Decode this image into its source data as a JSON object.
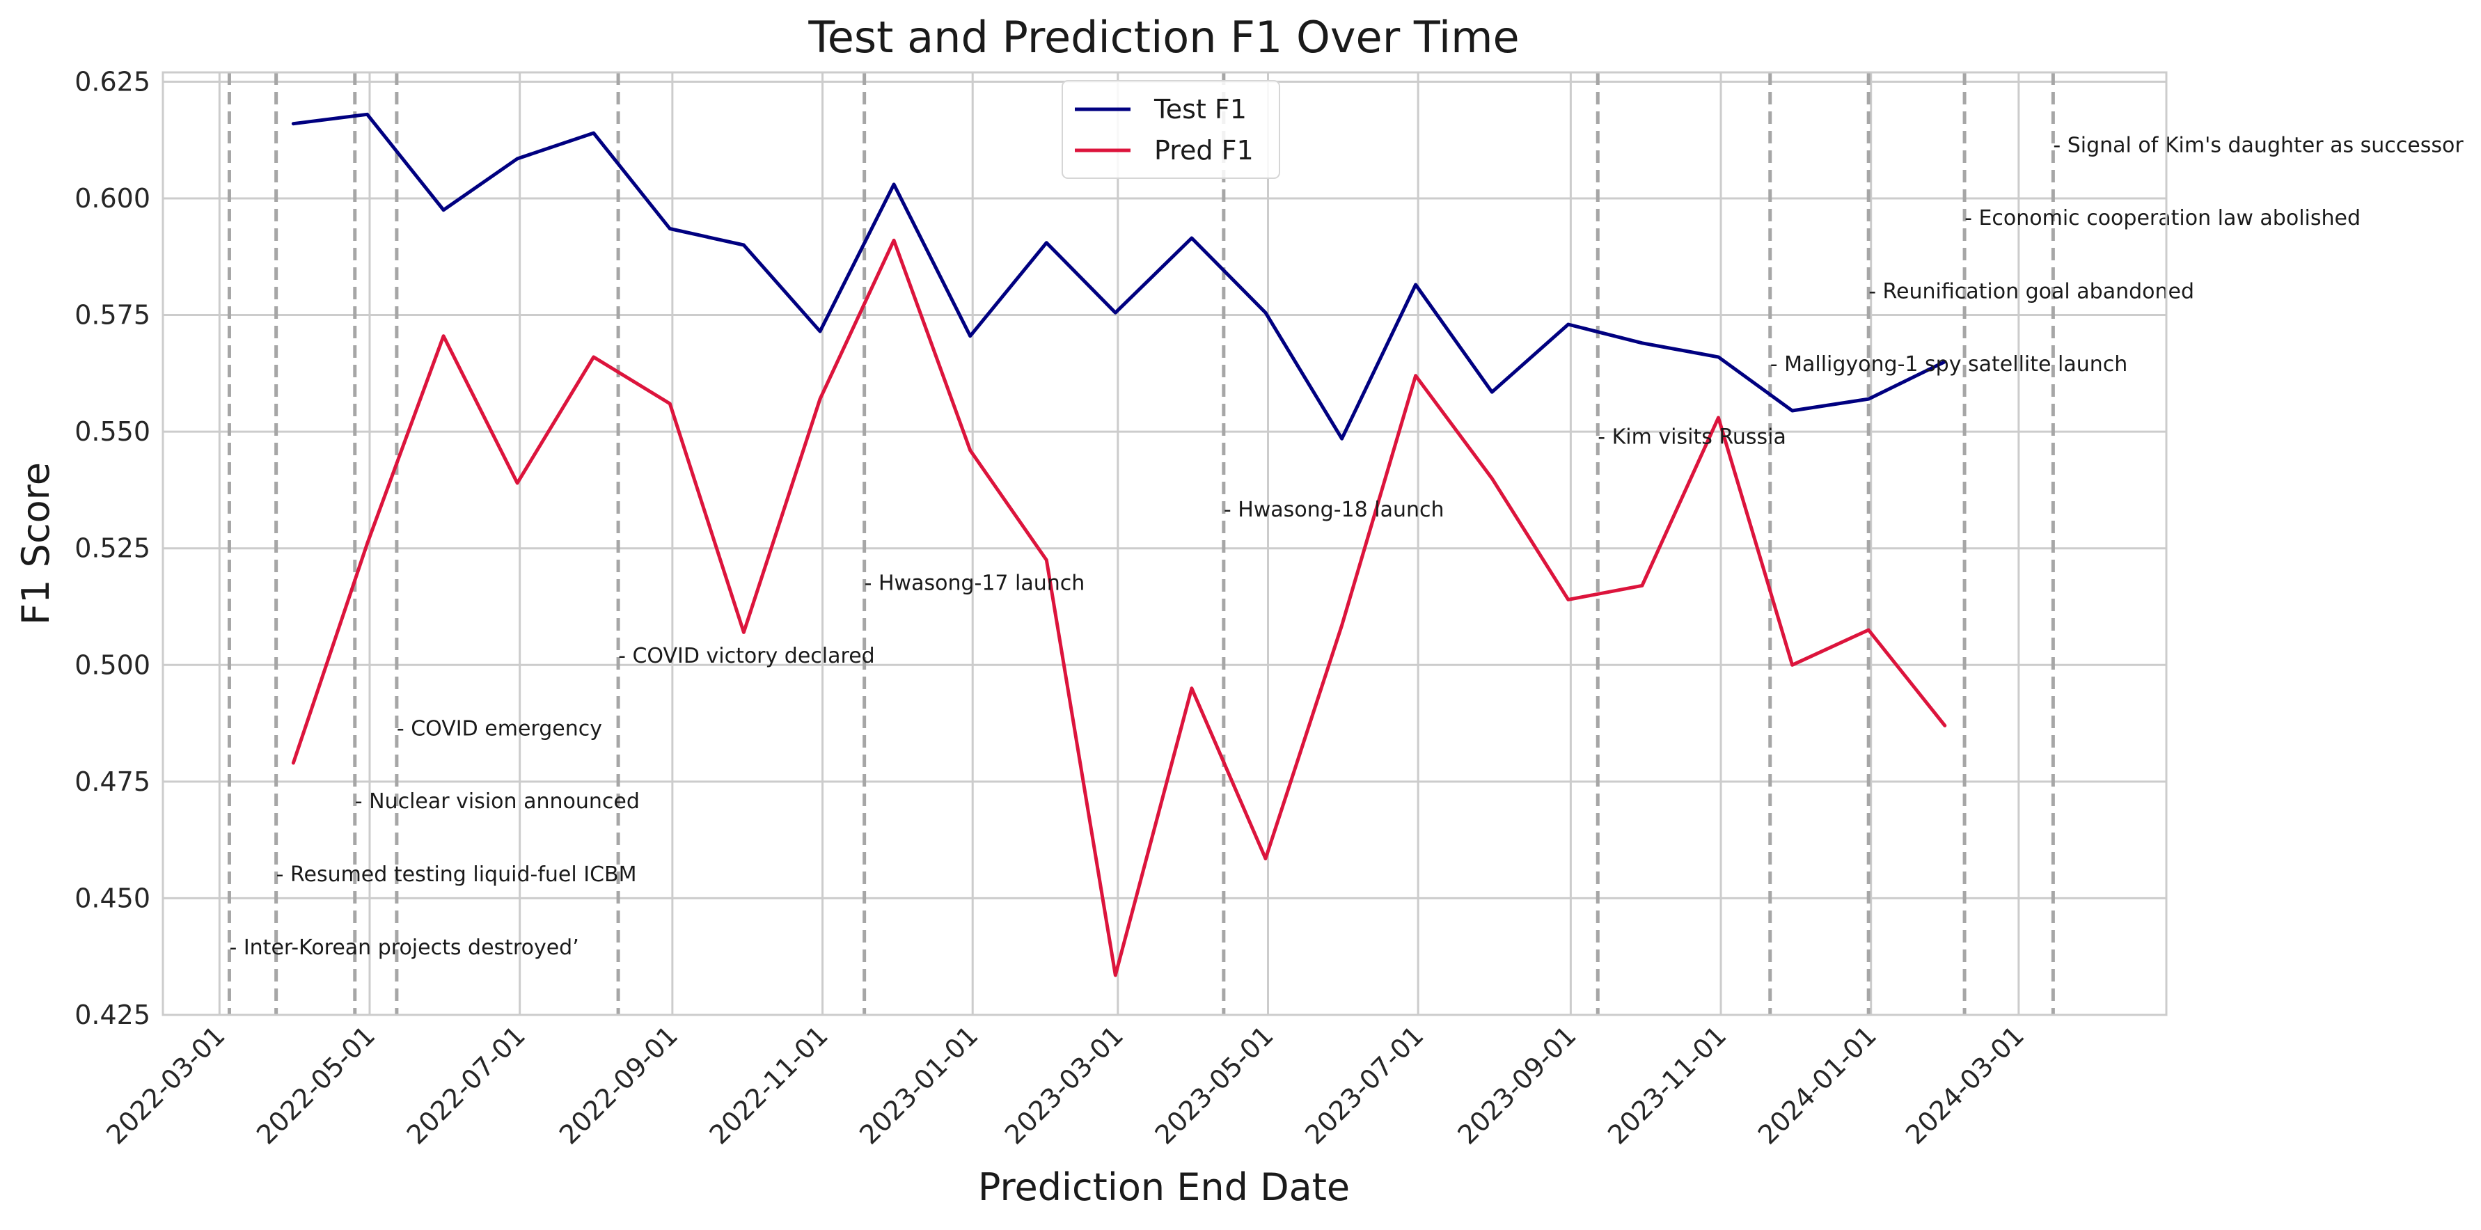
{
  "chart_data": {
    "type": "line",
    "title": "Test and Prediction F1 Over Time",
    "xlabel": "Prediction End Date",
    "ylabel": "F1 Score",
    "xlim": [
      "2022-02-06",
      "2024-04-30"
    ],
    "ylim": [
      0.425,
      0.627
    ],
    "grid": true,
    "legend_position": "top-center",
    "x_ticks": [
      "2022-03-01",
      "2022-05-01",
      "2022-07-01",
      "2022-09-01",
      "2022-11-01",
      "2023-01-01",
      "2023-03-01",
      "2023-05-01",
      "2023-07-01",
      "2023-09-01",
      "2023-11-01",
      "2024-01-01",
      "2024-03-01"
    ],
    "y_ticks": [
      "0.425",
      "0.450",
      "0.475",
      "0.500",
      "0.525",
      "0.550",
      "0.575",
      "0.600",
      "0.625"
    ],
    "x": [
      "2022-03-31",
      "2022-04-30",
      "2022-05-31",
      "2022-06-30",
      "2022-07-31",
      "2022-08-31",
      "2022-09-30",
      "2022-10-31",
      "2022-11-30",
      "2022-12-31",
      "2023-01-31",
      "2023-02-28",
      "2023-03-31",
      "2023-04-30",
      "2023-05-31",
      "2023-06-30",
      "2023-07-31",
      "2023-08-31",
      "2023-09-30",
      "2023-10-31",
      "2023-11-30",
      "2023-12-31",
      "2024-01-31"
    ],
    "series": [
      {
        "name": "Test F1",
        "color": "#000080",
        "values": [
          0.616,
          0.618,
          0.5975,
          0.6085,
          0.614,
          0.5935,
          0.59,
          0.5715,
          0.603,
          0.5705,
          0.5905,
          0.5755,
          0.5915,
          0.5755,
          0.5485,
          0.5815,
          0.5585,
          0.573,
          0.569,
          0.566,
          0.5545,
          0.557,
          0.565
        ]
      },
      {
        "name": "Pred F1",
        "color": "#dc143c",
        "values": [
          0.479,
          0.526,
          0.5705,
          0.539,
          0.566,
          0.556,
          0.507,
          0.557,
          0.591,
          0.546,
          0.5225,
          0.4335,
          0.495,
          0.4585,
          0.5085,
          0.562,
          0.54,
          0.514,
          0.517,
          0.553,
          0.5,
          0.5075,
          0.487
        ]
      }
    ],
    "events": [
      {
        "date": "2022-03-05",
        "label": "- Inter-Korean projects destroyed’",
        "y": 0.4395
      },
      {
        "date": "2022-03-24",
        "label": "- Resumed testing liquid-fuel ICBM",
        "y": 0.4551
      },
      {
        "date": "2022-04-25",
        "label": "- Nuclear vision announced",
        "y": 0.4708
      },
      {
        "date": "2022-05-12",
        "label": "- COVID emergency",
        "y": 0.4864
      },
      {
        "date": "2022-08-10",
        "label": "- COVID victory declared",
        "y": 0.502
      },
      {
        "date": "2022-11-18",
        "label": "- Hwasong-17 launch",
        "y": 0.5176
      },
      {
        "date": "2023-04-13",
        "label": "- Hwasong-18 launch",
        "y": 0.5333
      },
      {
        "date": "2023-09-12",
        "label": "- Kim visits Russia",
        "y": 0.5489
      },
      {
        "date": "2023-11-21",
        "label": "- Malligyong-1 spy satellite launch",
        "y": 0.5645
      },
      {
        "date": "2023-12-31",
        "label": "- Reunification goal abandoned",
        "y": 0.5801
      },
      {
        "date": "2024-02-08",
        "label": "- Economic cooperation law abolished",
        "y": 0.5958
      },
      {
        "date": "2024-03-15",
        "label": "- Signal of Kim's daughter as successor",
        "y": 0.6114
      }
    ],
    "colors": {
      "event_line": "#a6a6a6",
      "grid": "#cccccc",
      "axes_edge": "#cccccc"
    }
  }
}
